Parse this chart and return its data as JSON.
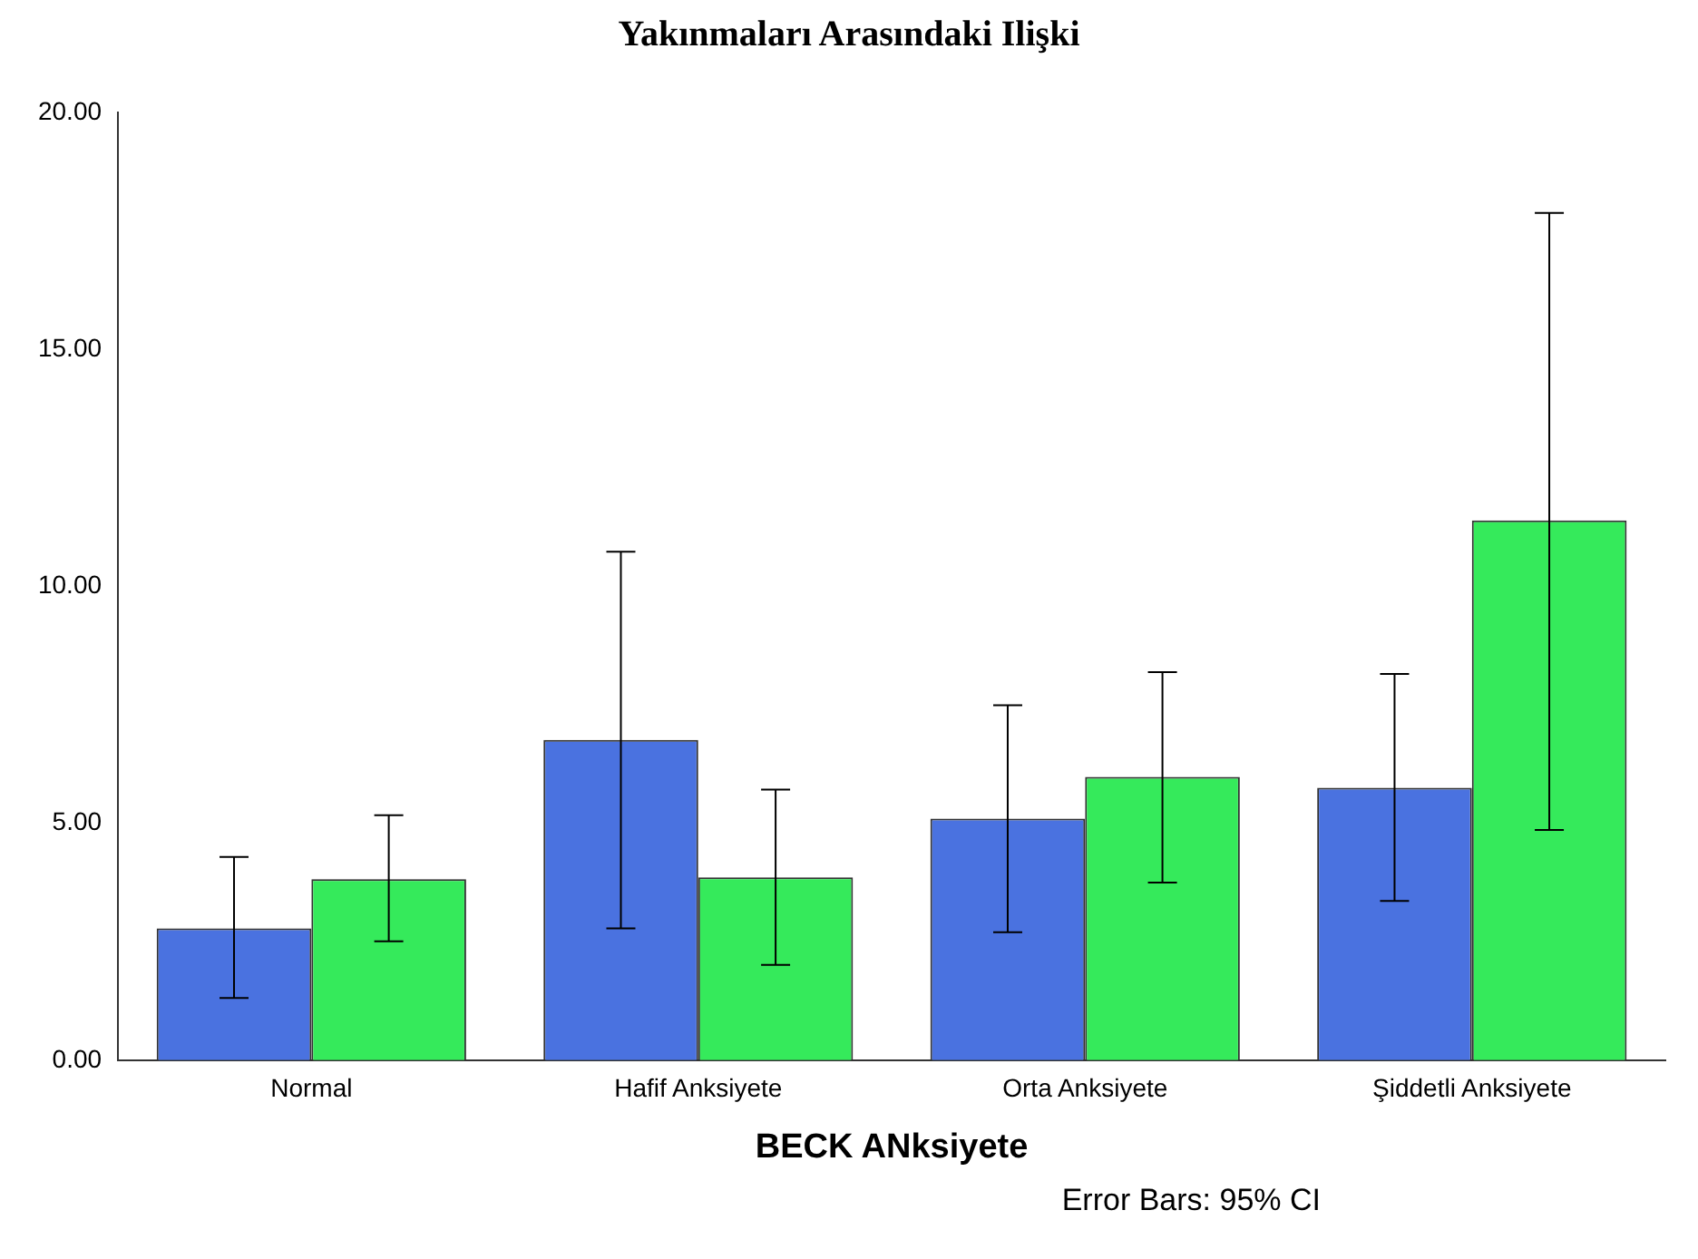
{
  "chart_data": {
    "type": "bar",
    "title": "Yakınmaları Arasındaki Ilişki",
    "xlabel": "BECK ANksiyete",
    "annotations": [
      "Error Bars: 95% CI"
    ],
    "categories": [
      "Normal",
      "Hafif Anksiyete",
      "Orta Anksiyete",
      "Şiddetli Anksiyete"
    ],
    "series": [
      {
        "color": "#4a72e0",
        "values": [
          2.78,
          6.76,
          5.1,
          5.75
        ],
        "errors": [
          [
            1.31,
            4.29
          ],
          [
            2.78,
            10.73
          ],
          [
            2.7,
            7.49
          ],
          [
            3.36,
            8.15
          ]
        ]
      },
      {
        "color": "#35ea5b",
        "values": [
          3.82,
          3.86,
          5.98,
          11.39
        ],
        "errors": [
          [
            2.51,
            5.17
          ],
          [
            2.01,
            5.71
          ],
          [
            3.75,
            8.19
          ],
          [
            4.86,
            17.88
          ]
        ]
      }
    ],
    "ylim": [
      0,
      20
    ],
    "yticks": [
      {
        "value": 0,
        "label": "0.00"
      },
      {
        "value": 5,
        "label": "5.00"
      },
      {
        "value": 10,
        "label": "10.00"
      },
      {
        "value": 15,
        "label": "15.00"
      },
      {
        "value": 20,
        "label": "20.00"
      }
    ],
    "grid": false,
    "legend": false
  }
}
